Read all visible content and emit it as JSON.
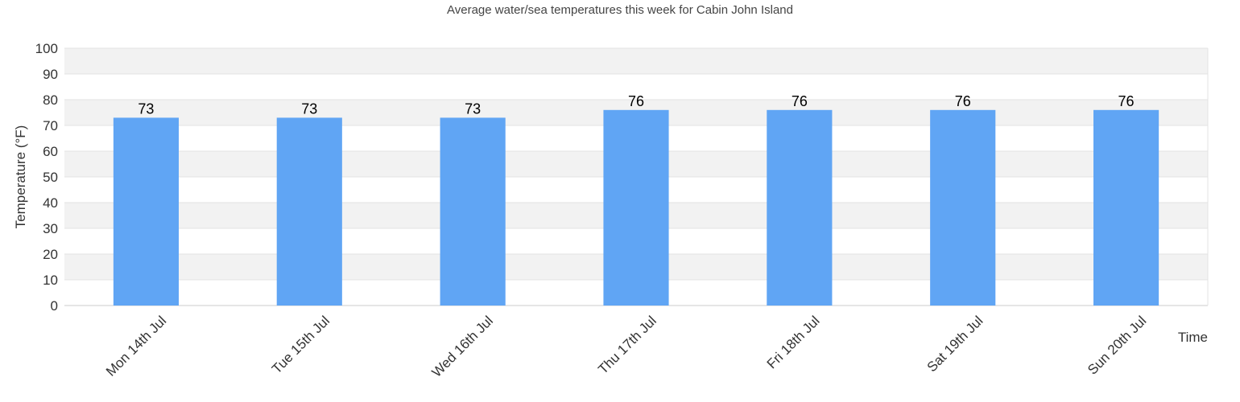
{
  "chart_data": {
    "type": "bar",
    "title": "Average water/sea temperatures this week for Cabin John Island",
    "xlabel": "Time",
    "ylabel": "Temperature (°F)",
    "categories": [
      "Mon 14th Jul",
      "Tue 15th Jul",
      "Wed 16th Jul",
      "Thu 17th Jul",
      "Fri 18th Jul",
      "Sat 19th Jul",
      "Sun 20th Jul"
    ],
    "values": [
      73,
      73,
      73,
      76,
      76,
      76,
      76
    ],
    "ylim": [
      0,
      100
    ],
    "yticks": [
      0,
      10,
      20,
      30,
      40,
      50,
      60,
      70,
      80,
      90,
      100
    ],
    "grid": true,
    "legend": "none",
    "bar_color": "#60a5f4",
    "band_color": "#f2f2f2"
  }
}
